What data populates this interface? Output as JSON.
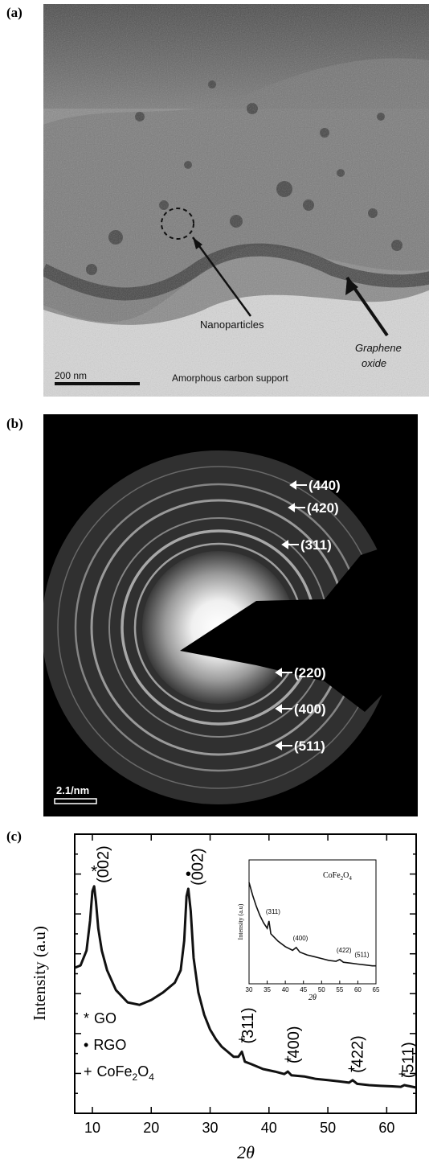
{
  "panels": {
    "a": {
      "label": "(a)",
      "annotations": {
        "nanoparticles": "Nanoparticles",
        "graphene_line1": "Graphene",
        "graphene_line2": "oxide",
        "scale_bar": "200 nm",
        "support": "Amorphous carbon support"
      }
    },
    "b": {
      "label": "(b)",
      "rings": [
        "(440)",
        "(420)",
        "(311)",
        "(220)",
        "(400)",
        "(511)"
      ],
      "scale_bar": "2.1/nm"
    },
    "c": {
      "label": "(c)",
      "legend": [
        {
          "symbol": "*",
          "text": "GO"
        },
        {
          "symbol": "•",
          "text": "RGO"
        },
        {
          "symbol": "+",
          "text": "CoFe",
          "sub": "2",
          "tail": "O",
          "sub2": "4"
        }
      ]
    }
  },
  "chart_data": [
    {
      "type": "line",
      "xlabel": "2θ",
      "ylabel": "Intensity (a.u)",
      "xlim": [
        7,
        65
      ],
      "x_ticks": [
        10,
        20,
        30,
        40,
        50,
        60
      ],
      "y_ticks_labeled": false,
      "series": [
        {
          "x": [
            7,
            8,
            9,
            9.6,
            10.0,
            10.3,
            10.6,
            11,
            11.6,
            12.5,
            14,
            16,
            18,
            20,
            22,
            24,
            25,
            25.6,
            26.0,
            26.3,
            26.7,
            27.2,
            28,
            29,
            30,
            31,
            32,
            33,
            34,
            34.8,
            35.4,
            35.9,
            37,
            39,
            41,
            42.6,
            43.2,
            43.8,
            46,
            48,
            50,
            52,
            53.6,
            54.2,
            55,
            57,
            59,
            61,
            62.4,
            63,
            65
          ],
          "y": [
            0.55,
            0.56,
            0.62,
            0.74,
            0.86,
            0.88,
            0.82,
            0.71,
            0.62,
            0.54,
            0.46,
            0.41,
            0.4,
            0.42,
            0.45,
            0.49,
            0.54,
            0.66,
            0.84,
            0.87,
            0.78,
            0.59,
            0.45,
            0.36,
            0.3,
            0.26,
            0.23,
            0.21,
            0.19,
            0.19,
            0.21,
            0.17,
            0.16,
            0.14,
            0.13,
            0.12,
            0.13,
            0.115,
            0.11,
            0.1,
            0.095,
            0.09,
            0.085,
            0.095,
            0.08,
            0.075,
            0.072,
            0.07,
            0.068,
            0.075,
            0.065
          ]
        }
      ],
      "peak_labels": [
        {
          "x": 10.3,
          "marker": "*",
          "hkl": "(002)"
        },
        {
          "x": 26.3,
          "marker": "•",
          "hkl": "(002)"
        },
        {
          "x": 35.4,
          "marker": "+",
          "hkl": "(311)"
        },
        {
          "x": 43.2,
          "marker": "+",
          "hkl": "(400)"
        },
        {
          "x": 54.0,
          "marker": "+",
          "hkl": "(422)"
        },
        {
          "x": 62.6,
          "marker": "+",
          "hkl": "(511)"
        }
      ]
    },
    {
      "type": "line",
      "title": "CoFe2O4",
      "title_main": "CoFe",
      "title_sub": "2",
      "title_tail": "O",
      "title_sub2": "4",
      "xlabel": "2θ",
      "ylabel": "Intensity (a.u)",
      "xlim": [
        30,
        65
      ],
      "x_ticks": [
        30,
        35,
        40,
        45,
        50,
        55,
        60,
        65
      ],
      "series": [
        {
          "x": [
            30,
            31,
            32,
            33,
            34,
            35,
            35.5,
            36,
            37,
            38,
            40,
            42,
            43,
            44,
            46,
            48,
            50,
            52,
            54,
            55,
            56,
            58,
            60,
            62,
            64,
            65
          ],
          "y": [
            1.0,
            0.86,
            0.74,
            0.64,
            0.56,
            0.5,
            0.58,
            0.44,
            0.4,
            0.36,
            0.3,
            0.26,
            0.29,
            0.24,
            0.21,
            0.19,
            0.17,
            0.15,
            0.14,
            0.16,
            0.13,
            0.12,
            0.11,
            0.1,
            0.09,
            0.09
          ]
        }
      ],
      "peak_labels": [
        {
          "x": 35.5,
          "hkl": "(311)"
        },
        {
          "x": 43,
          "hkl": "(400)"
        },
        {
          "x": 55,
          "hkl": "(422)"
        },
        {
          "x": 60,
          "hkl": "(511)"
        }
      ]
    }
  ]
}
